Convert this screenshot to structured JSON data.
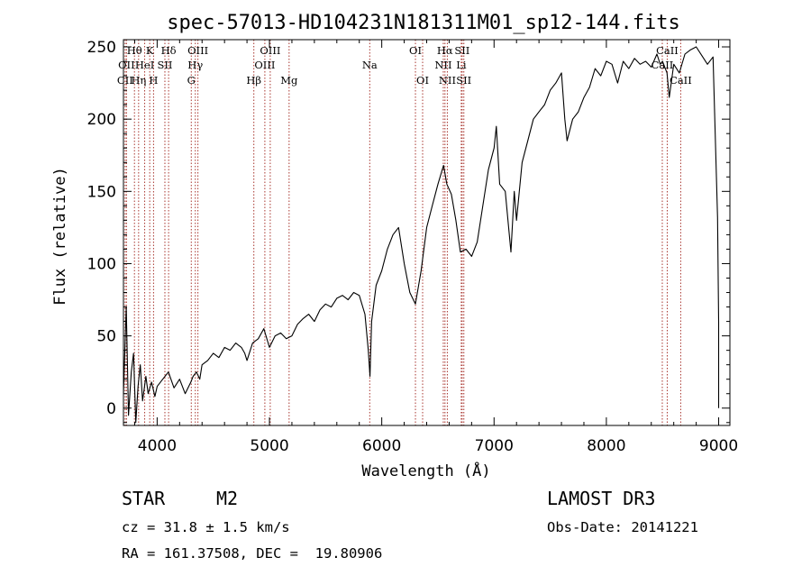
{
  "chart_data": {
    "type": "line",
    "title": "spec-57013-HD104231N181311M01_sp12-144.fits",
    "xlabel": "Wavelength (Å)",
    "ylabel": "Flux (relative)",
    "xlim": [
      3700,
      9100
    ],
    "ylim": [
      -12,
      255
    ],
    "x_ticks": [
      4000,
      5000,
      6000,
      7000,
      8000,
      9000
    ],
    "y_ticks": [
      0,
      50,
      100,
      150,
      200,
      250
    ],
    "series": [
      {
        "name": "flux",
        "color": "#000000",
        "points": [
          [
            3700,
            10
          ],
          [
            3725,
            70
          ],
          [
            3745,
            -5
          ],
          [
            3770,
            25
          ],
          [
            3790,
            38
          ],
          [
            3810,
            -10
          ],
          [
            3830,
            15
          ],
          [
            3850,
            30
          ],
          [
            3870,
            5
          ],
          [
            3900,
            22
          ],
          [
            3920,
            10
          ],
          [
            3950,
            18
          ],
          [
            3980,
            8
          ],
          [
            4000,
            15
          ],
          [
            4050,
            20
          ],
          [
            4100,
            25
          ],
          [
            4150,
            14
          ],
          [
            4200,
            20
          ],
          [
            4250,
            10
          ],
          [
            4300,
            18
          ],
          [
            4320,
            22
          ],
          [
            4350,
            25
          ],
          [
            4380,
            20
          ],
          [
            4400,
            30
          ],
          [
            4450,
            33
          ],
          [
            4500,
            38
          ],
          [
            4550,
            35
          ],
          [
            4600,
            42
          ],
          [
            4650,
            40
          ],
          [
            4700,
            45
          ],
          [
            4750,
            42
          ],
          [
            4780,
            38
          ],
          [
            4800,
            33
          ],
          [
            4850,
            45
          ],
          [
            4900,
            48
          ],
          [
            4950,
            55
          ],
          [
            5000,
            42
          ],
          [
            5050,
            50
          ],
          [
            5100,
            52
          ],
          [
            5150,
            48
          ],
          [
            5200,
            50
          ],
          [
            5250,
            58
          ],
          [
            5300,
            62
          ],
          [
            5350,
            65
          ],
          [
            5400,
            60
          ],
          [
            5450,
            68
          ],
          [
            5500,
            72
          ],
          [
            5550,
            70
          ],
          [
            5600,
            76
          ],
          [
            5650,
            78
          ],
          [
            5700,
            75
          ],
          [
            5750,
            80
          ],
          [
            5800,
            78
          ],
          [
            5850,
            65
          ],
          [
            5880,
            40
          ],
          [
            5895,
            22
          ],
          [
            5910,
            60
          ],
          [
            5950,
            85
          ],
          [
            6000,
            95
          ],
          [
            6050,
            110
          ],
          [
            6100,
            120
          ],
          [
            6150,
            125
          ],
          [
            6200,
            100
          ],
          [
            6250,
            80
          ],
          [
            6300,
            72
          ],
          [
            6350,
            95
          ],
          [
            6400,
            125
          ],
          [
            6450,
            140
          ],
          [
            6500,
            155
          ],
          [
            6550,
            168
          ],
          [
            6580,
            155
          ],
          [
            6620,
            148
          ],
          [
            6660,
            130
          ],
          [
            6700,
            108
          ],
          [
            6750,
            110
          ],
          [
            6800,
            105
          ],
          [
            6850,
            115
          ],
          [
            6900,
            140
          ],
          [
            6950,
            165
          ],
          [
            7000,
            180
          ],
          [
            7020,
            195
          ],
          [
            7050,
            155
          ],
          [
            7100,
            150
          ],
          [
            7150,
            108
          ],
          [
            7180,
            150
          ],
          [
            7200,
            130
          ],
          [
            7250,
            170
          ],
          [
            7300,
            185
          ],
          [
            7350,
            200
          ],
          [
            7400,
            205
          ],
          [
            7450,
            210
          ],
          [
            7500,
            220
          ],
          [
            7550,
            225
          ],
          [
            7600,
            232
          ],
          [
            7630,
            200
          ],
          [
            7650,
            185
          ],
          [
            7700,
            200
          ],
          [
            7750,
            205
          ],
          [
            7800,
            215
          ],
          [
            7850,
            222
          ],
          [
            7900,
            235
          ],
          [
            7950,
            230
          ],
          [
            8000,
            240
          ],
          [
            8050,
            238
          ],
          [
            8100,
            225
          ],
          [
            8150,
            240
          ],
          [
            8200,
            235
          ],
          [
            8250,
            242
          ],
          [
            8300,
            238
          ],
          [
            8350,
            240
          ],
          [
            8400,
            236
          ],
          [
            8450,
            245
          ],
          [
            8480,
            238
          ],
          [
            8500,
            240
          ],
          [
            8540,
            232
          ],
          [
            8560,
            215
          ],
          [
            8600,
            238
          ],
          [
            8650,
            232
          ],
          [
            8700,
            245
          ],
          [
            8750,
            248
          ],
          [
            8800,
            250
          ],
          [
            8850,
            244
          ],
          [
            8900,
            238
          ],
          [
            8950,
            243
          ],
          [
            8990,
            132
          ],
          [
            9000,
            60
          ],
          [
            9000,
            0
          ]
        ]
      }
    ],
    "line_markers": [
      {
        "label": "Hθ",
        "x": 3798,
        "row": 1
      },
      {
        "label": "OII",
        "x": 3727,
        "row": 2
      },
      {
        "label": "CII",
        "x": 3715,
        "row": 3
      },
      {
        "label": "K",
        "x": 3934,
        "row": 1
      },
      {
        "label": "HeI",
        "x": 3889,
        "row": 2
      },
      {
        "label": "Hη",
        "x": 3835,
        "row": 3
      },
      {
        "label": "Hδ",
        "x": 4102,
        "row": 1
      },
      {
        "label": "SII",
        "x": 4069,
        "row": 2
      },
      {
        "label": "H",
        "x": 3968,
        "row": 3
      },
      {
        "label": "OIII",
        "x": 4363,
        "row": 1
      },
      {
        "label": "Hγ",
        "x": 4340,
        "row": 2
      },
      {
        "label": "G",
        "x": 4304,
        "row": 3
      },
      {
        "label": "OIII",
        "x": 5007,
        "row": 1
      },
      {
        "label": "OIII",
        "x": 4959,
        "row": 2
      },
      {
        "label": "Hβ",
        "x": 4861,
        "row": 3
      },
      {
        "label": "Mg",
        "x": 5175,
        "row": 3
      },
      {
        "label": "Na",
        "x": 5893,
        "row": 2
      },
      {
        "label": "OI",
        "x": 6300,
        "row": 1
      },
      {
        "label": "OI",
        "x": 6364,
        "row": 3
      },
      {
        "label": "Hα",
        "x": 6563,
        "row": 1
      },
      {
        "label": "SII",
        "x": 6716,
        "row": 1
      },
      {
        "label": "NII",
        "x": 6548,
        "row": 2
      },
      {
        "label": "Li",
        "x": 6708,
        "row": 2
      },
      {
        "label": "NII",
        "x": 6584,
        "row": 3
      },
      {
        "label": "SII",
        "x": 6731,
        "row": 3
      },
      {
        "label": "CaII",
        "x": 8542,
        "row": 1
      },
      {
        "label": "CaII",
        "x": 8498,
        "row": 2
      },
      {
        "label": "CaII",
        "x": 8662,
        "row": 3
      }
    ],
    "marker_color": "#a8352e",
    "info": {
      "class": "STAR",
      "subclass": "M2",
      "survey": "LAMOST DR3",
      "cz": "cz = 31.8 ± 1.5 km/s",
      "obs_date": "Obs-Date: 20141221",
      "coords": "RA = 161.37508, DEC =  19.80906"
    }
  }
}
